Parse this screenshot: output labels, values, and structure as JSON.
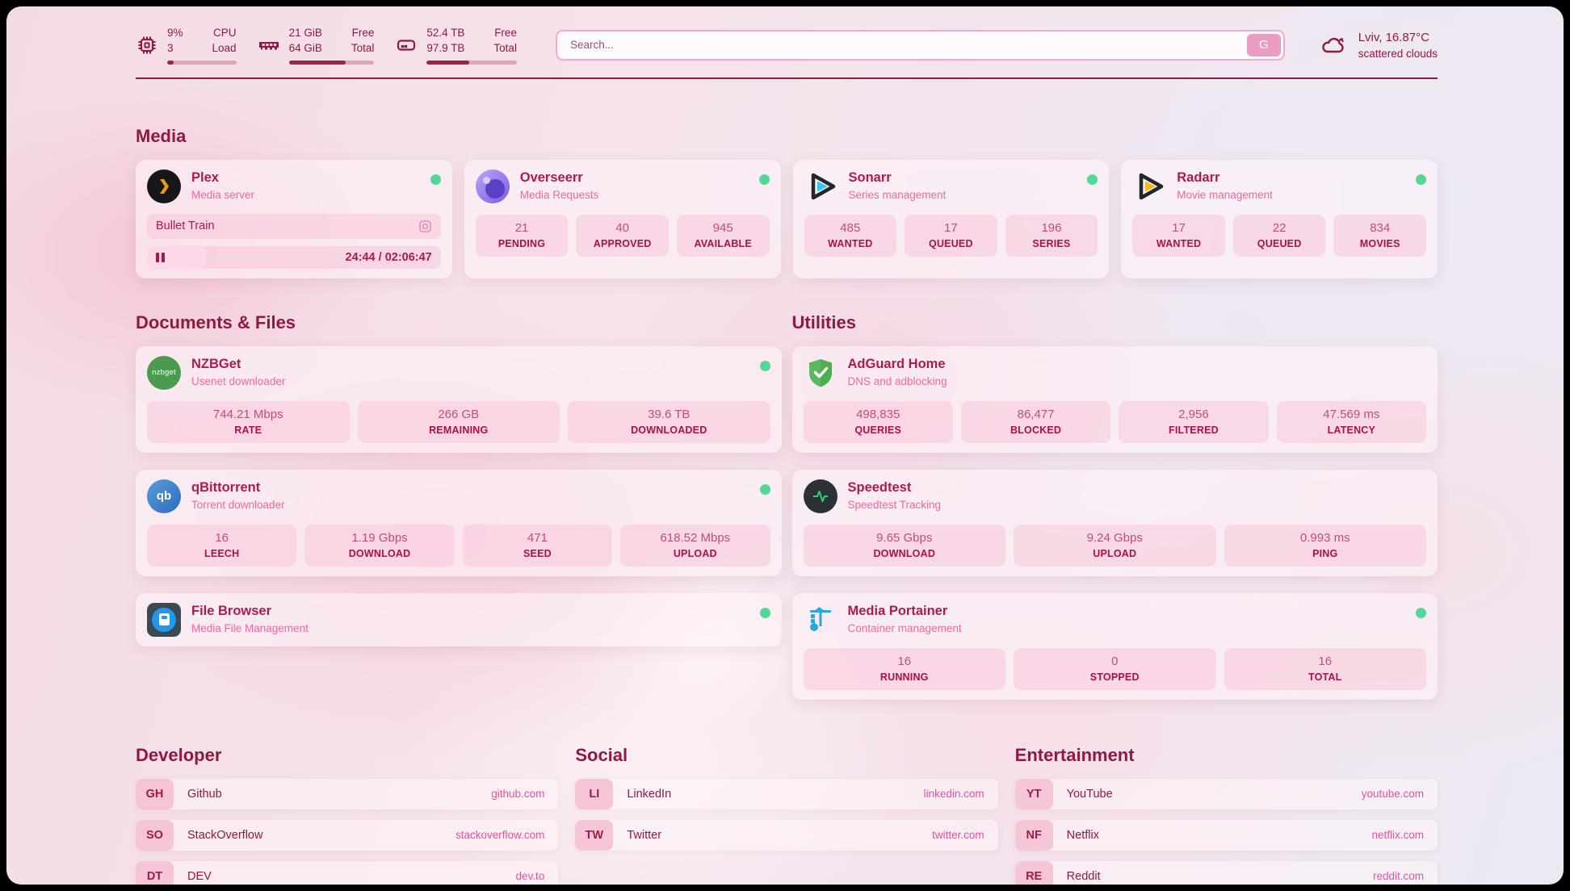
{
  "colors": {
    "accent": "#8e1a42",
    "title_text": "#ad1a50",
    "subtitle_text": "#ef689e",
    "stat_label": "#ad1046",
    "link_url": "#e7519a",
    "status_ok": "#52d795",
    "plex_gold": "#e5a00d",
    "sonarr_blue": "#35c5f4",
    "radarr_yellow": "#ffb526",
    "search_button_bg": "#eb9dc1"
  },
  "header": {
    "cpu": {
      "icon": "cpu-icon",
      "values": [
        "9%",
        "3"
      ],
      "labels": [
        "CPU",
        "Load"
      ],
      "progress_pct": 9
    },
    "ram": {
      "icon": "ram-icon",
      "values": [
        "21 GiB",
        "64 GiB"
      ],
      "labels": [
        "Free",
        "Total"
      ],
      "progress_pct": 67
    },
    "disk": {
      "icon": "disk-icon",
      "values": [
        "52.4 TB",
        "97.9 TB"
      ],
      "labels": [
        "Free",
        "Total"
      ],
      "progress_pct": 47
    },
    "search": {
      "placeholder": "Search...",
      "button_label": "G"
    },
    "weather": {
      "icon": "cloud-icon",
      "summary": "Lviv, 16.87°C",
      "condition": "scattered clouds"
    }
  },
  "sections": {
    "media": {
      "title": "Media",
      "plex": {
        "name": "Plex",
        "subtitle": "Media server",
        "icon": "plex-icon",
        "status": "online",
        "now_playing": "Bullet Train",
        "elapsed_total": "24:44 / 02:06:47",
        "progress_pct": 20
      },
      "overseerr": {
        "name": "Overseerr",
        "subtitle": "Media Requests",
        "icon": "overseerr-icon",
        "status": "online",
        "stats": [
          {
            "value": "21",
            "label": "PENDING"
          },
          {
            "value": "40",
            "label": "APPROVED"
          },
          {
            "value": "945",
            "label": "AVAILABLE"
          }
        ]
      },
      "sonarr": {
        "name": "Sonarr",
        "subtitle": "Series management",
        "icon": "sonarr-icon",
        "status": "online",
        "stats": [
          {
            "value": "485",
            "label": "WANTED"
          },
          {
            "value": "17",
            "label": "QUEUED"
          },
          {
            "value": "196",
            "label": "SERIES"
          }
        ]
      },
      "radarr": {
        "name": "Radarr",
        "subtitle": "Movie management",
        "icon": "radarr-icon",
        "status": "online",
        "stats": [
          {
            "value": "17",
            "label": "WANTED"
          },
          {
            "value": "22",
            "label": "QUEUED"
          },
          {
            "value": "834",
            "label": "MOVIES"
          }
        ]
      }
    },
    "documents": {
      "title": "Documents & Files",
      "nzbget": {
        "name": "NZBGet",
        "subtitle": "Usenet downloader",
        "icon": "nzbget-icon",
        "icon_text": "nzbget",
        "status": "online",
        "stats": [
          {
            "value": "744.21 Mbps",
            "label": "RATE"
          },
          {
            "value": "266 GB",
            "label": "REMAINING"
          },
          {
            "value": "39.6 TB",
            "label": "DOWNLOADED"
          }
        ]
      },
      "qbittorrent": {
        "name": "qBittorrent",
        "subtitle": "Torrent downloader",
        "icon": "qbittorrent-icon",
        "icon_text": "qb",
        "status": "online",
        "stats": [
          {
            "value": "16",
            "label": "LEECH"
          },
          {
            "value": "1.19 Gbps",
            "label": "DOWNLOAD"
          },
          {
            "value": "471",
            "label": "SEED"
          },
          {
            "value": "618.52 Mbps",
            "label": "UPLOAD"
          }
        ]
      },
      "filebrowser": {
        "name": "File Browser",
        "subtitle": "Media File Management",
        "icon": "filebrowser-icon",
        "status": "online"
      }
    },
    "utilities": {
      "title": "Utilities",
      "adguard": {
        "name": "AdGuard Home",
        "subtitle": "DNS and adblocking",
        "icon": "adguard-shield-icon",
        "stats": [
          {
            "value": "498,835",
            "label": "QUERIES"
          },
          {
            "value": "86,477",
            "label": "BLOCKED"
          },
          {
            "value": "2,956",
            "label": "FILTERED"
          },
          {
            "value": "47.569 ms",
            "label": "LATENCY"
          }
        ]
      },
      "speedtest": {
        "name": "Speedtest",
        "subtitle": "Speedtest Tracking",
        "icon": "speedtest-pulse-icon",
        "stats": [
          {
            "value": "9.65 Gbps",
            "label": "DOWNLOAD"
          },
          {
            "value": "9.24 Gbps",
            "label": "UPLOAD"
          },
          {
            "value": "0.993 ms",
            "label": "PING"
          }
        ]
      },
      "portainer": {
        "name": "Media Portainer",
        "subtitle": "Container management",
        "icon": "portainer-crane-icon",
        "status": "online",
        "stats": [
          {
            "value": "16",
            "label": "RUNNING"
          },
          {
            "value": "0",
            "label": "STOPPED"
          },
          {
            "value": "16",
            "label": "TOTAL"
          }
        ]
      }
    },
    "developer": {
      "title": "Developer",
      "links": [
        {
          "abbr": "GH",
          "name": "Github",
          "url": "github.com"
        },
        {
          "abbr": "SO",
          "name": "StackOverflow",
          "url": "stackoverflow.com"
        },
        {
          "abbr": "DT",
          "name": "DEV",
          "url": "dev.to"
        }
      ]
    },
    "social": {
      "title": "Social",
      "links": [
        {
          "abbr": "LI",
          "name": "LinkedIn",
          "url": "linkedin.com"
        },
        {
          "abbr": "TW",
          "name": "Twitter",
          "url": "twitter.com"
        }
      ]
    },
    "entertainment": {
      "title": "Entertainment",
      "links": [
        {
          "abbr": "YT",
          "name": "YouTube",
          "url": "youtube.com"
        },
        {
          "abbr": "NF",
          "name": "Netflix",
          "url": "netflix.com"
        },
        {
          "abbr": "RE",
          "name": "Reddit",
          "url": "reddit.com"
        }
      ]
    }
  }
}
